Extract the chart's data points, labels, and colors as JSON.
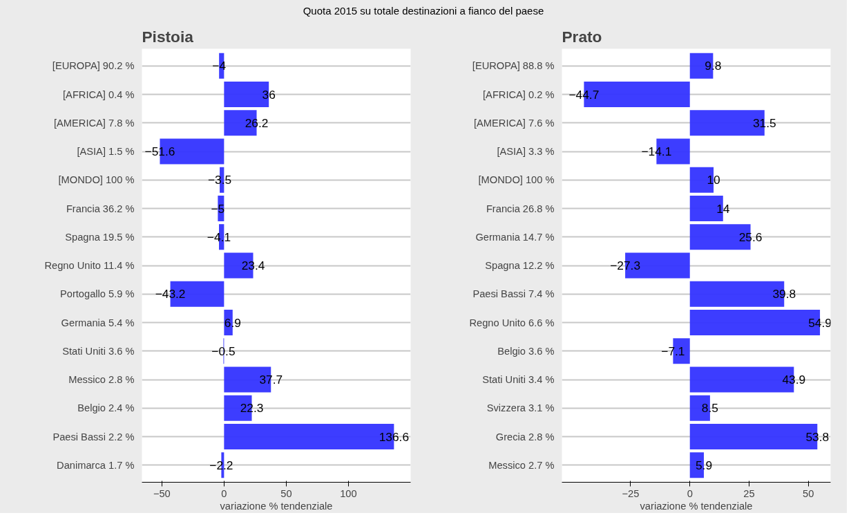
{
  "chart_data": [
    {
      "type": "bar",
      "orientation": "horizontal",
      "title": "Pistoia",
      "annotations": [
        "Quota 2015 su totale destinazioni a fianco del paese"
      ],
      "xlabel": "variazione % tendenziale",
      "categories": [
        "[EUROPA] 90.2 %",
        "[AFRICA] 0.4 %",
        "[AMERICA] 7.8 %",
        "[ASIA] 1.5 %",
        "[MONDO] 100 %",
        "Francia 36.2 %",
        "Spagna 19.5 %",
        "Regno Unito 11.4 %",
        "Portogallo 5.9 %",
        "Germania 5.4 %",
        "Stati Uniti 3.6 %",
        "Messico 2.8 %",
        "Belgio 2.4 %",
        "Paesi Bassi 2.2 %",
        "Danimarca 1.7 %"
      ],
      "values": [
        -4,
        36,
        26.2,
        -51.6,
        -3.5,
        -5,
        -4.1,
        23.4,
        -43.2,
        6.9,
        -0.5,
        37.7,
        22.3,
        136.6,
        -2.2
      ],
      "color": "#3333ff",
      "xlim": [
        -66,
        150
      ],
      "xticks": [
        -50,
        0,
        50,
        100
      ],
      "grid": "y",
      "data_labels": true
    },
    {
      "type": "bar",
      "orientation": "horizontal",
      "title": "Prato",
      "xlabel": "variazione % tendenziale",
      "categories": [
        "[EUROPA] 88.8 %",
        "[AFRICA] 0.2 %",
        "[AMERICA] 7.6 %",
        "[ASIA] 3.3 %",
        "[MONDO] 100 %",
        "Francia 26.8 %",
        "Germania 14.7 %",
        "Spagna 12.2 %",
        "Paesi Bassi 7.4 %",
        "Regno Unito 6.6 %",
        "Belgio 3.6 %",
        "Stati Uniti 3.4 %",
        "Svizzera 3.1 %",
        "Grecia 2.8 %",
        "Messico 2.7 %"
      ],
      "values": [
        9.8,
        -44.7,
        31.5,
        -14.1,
        10,
        14,
        25.6,
        -27.3,
        39.8,
        54.9,
        -7.1,
        43.9,
        8.5,
        53.8,
        5.9
      ],
      "color": "#3333ff",
      "xlim": [
        -54,
        59.4
      ],
      "xticks": [
        -25,
        0,
        25,
        50
      ],
      "grid": "y",
      "data_labels": true
    }
  ]
}
